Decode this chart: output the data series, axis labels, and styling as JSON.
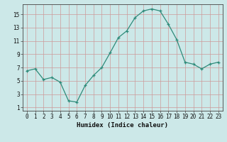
{
  "x": [
    0,
    1,
    2,
    3,
    4,
    5,
    6,
    7,
    8,
    9,
    10,
    11,
    12,
    13,
    14,
    15,
    16,
    17,
    18,
    19,
    20,
    21,
    22,
    23
  ],
  "y": [
    6.5,
    6.8,
    5.2,
    5.5,
    4.8,
    2.0,
    1.8,
    4.3,
    5.8,
    7.0,
    9.2,
    11.5,
    12.5,
    14.5,
    15.5,
    15.8,
    15.5,
    13.5,
    11.2,
    7.8,
    7.5,
    6.8,
    7.5,
    7.8
  ],
  "xlabel": "Humidex (Indice chaleur)",
  "line_color": "#2e8b7a",
  "bg_color": "#cce8e8",
  "grid_color": "#cc9999",
  "yticks": [
    1,
    3,
    5,
    7,
    9,
    11,
    13,
    15
  ],
  "xticks": [
    0,
    1,
    2,
    3,
    4,
    5,
    6,
    7,
    8,
    9,
    10,
    11,
    12,
    13,
    14,
    15,
    16,
    17,
    18,
    19,
    20,
    21,
    22,
    23
  ],
  "ylim": [
    0.5,
    16.5
  ],
  "xlim": [
    -0.5,
    23.5
  ],
  "tick_fontsize": 5.5,
  "xlabel_fontsize": 6.5
}
